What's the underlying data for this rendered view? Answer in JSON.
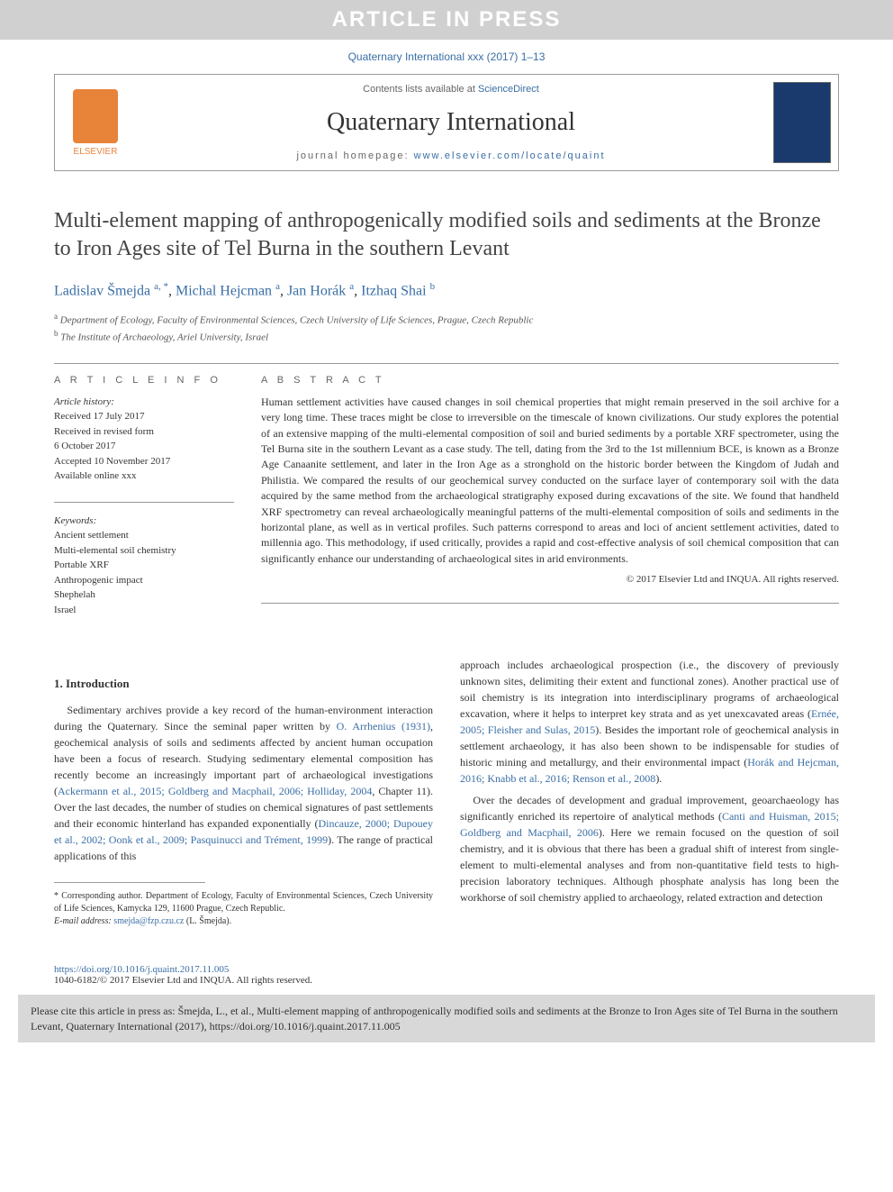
{
  "banner": "ARTICLE IN PRESS",
  "journal_ref": "Quaternary International xxx (2017) 1–13",
  "header": {
    "contents_prefix": "Contents lists available at ",
    "contents_link": "ScienceDirect",
    "journal_name": "Quaternary International",
    "homepage_prefix": "journal homepage: ",
    "homepage_url": "www.elsevier.com/locate/quaint",
    "publisher_label": "ELSEVIER"
  },
  "title": "Multi-element mapping of anthropogenically modified soils and sediments at the Bronze to Iron Ages site of Tel Burna in the southern Levant",
  "authors": [
    {
      "name": "Ladislav Šmejda",
      "sup": "a, *"
    },
    {
      "name": "Michal Hejcman",
      "sup": "a"
    },
    {
      "name": "Jan Horák",
      "sup": "a"
    },
    {
      "name": "Itzhaq Shai",
      "sup": "b"
    }
  ],
  "affiliations": [
    {
      "sup": "a",
      "text": "Department of Ecology, Faculty of Environmental Sciences, Czech University of Life Sciences, Prague, Czech Republic"
    },
    {
      "sup": "b",
      "text": "The Institute of Archaeology, Ariel University, Israel"
    }
  ],
  "article_info": {
    "heading": "A R T I C L E  I N F O",
    "history_label": "Article history:",
    "history": [
      "Received 17 July 2017",
      "Received in revised form",
      "6 October 2017",
      "Accepted 10 November 2017",
      "Available online xxx"
    ],
    "keywords_label": "Keywords:",
    "keywords": [
      "Ancient settlement",
      "Multi-elemental soil chemistry",
      "Portable XRF",
      "Anthropogenic impact",
      "Shephelah",
      "Israel"
    ]
  },
  "abstract": {
    "heading": "A B S T R A C T",
    "text": "Human settlement activities have caused changes in soil chemical properties that might remain preserved in the soil archive for a very long time. These traces might be close to irreversible on the timescale of known civilizations. Our study explores the potential of an extensive mapping of the multi-elemental composition of soil and buried sediments by a portable XRF spectrometer, using the Tel Burna site in the southern Levant as a case study. The tell, dating from the 3rd to the 1st millennium BCE, is known as a Bronze Age Canaanite settlement, and later in the Iron Age as a stronghold on the historic border between the Kingdom of Judah and Philistia. We compared the results of our geochemical survey conducted on the surface layer of contemporary soil with the data acquired by the same method from the archaeological stratigraphy exposed during excavations of the site. We found that handheld XRF spectrometry can reveal archaeologically meaningful patterns of the multi-elemental composition of soils and sediments in the horizontal plane, as well as in vertical profiles. Such patterns correspond to areas and loci of ancient settlement activities, dated to millennia ago. This methodology, if used critically, provides a rapid and cost-effective analysis of soil chemical composition that can significantly enhance our understanding of archaeological sites in arid environments.",
    "copyright": "© 2017 Elsevier Ltd and INQUA. All rights reserved."
  },
  "body": {
    "section_heading": "1. Introduction",
    "col1_p1_a": "Sedimentary archives provide a key record of the human-environment interaction during the Quaternary. Since the seminal paper written by ",
    "col1_p1_ref1": "O. Arrhenius (1931)",
    "col1_p1_b": ", geochemical analysis of soils and sediments affected by ancient human occupation have been a focus of research. Studying sedimentary elemental composition has recently become an increasingly important part of archaeological investigations (",
    "col1_p1_ref2": "Ackermann et al., 2015; Goldberg and Macphail, 2006; Holliday, 2004",
    "col1_p1_c": ", Chapter 11). Over the last decades, the number of studies on chemical signatures of past settlements and their economic hinterland has expanded exponentially (",
    "col1_p1_ref3": "Dincauze, 2000; Dupouey et al., 2002; Oonk et al., 2009; Pasquinucci and Trément, 1999",
    "col1_p1_d": "). The range of practical applications of this",
    "col2_p1_a": "approach includes archaeological prospection (i.e., the discovery of previously unknown sites, delimiting their extent and functional zones). Another practical use of soil chemistry is its integration into interdisciplinary programs of archaeological excavation, where it helps to interpret key strata and as yet unexcavated areas (",
    "col2_p1_ref1": "Ernée, 2005; Fleisher and Sulas, 2015",
    "col2_p1_b": "). Besides the important role of geochemical analysis in settlement archaeology, it has also been shown to be indispensable for studies of historic mining and metallurgy, and their environmental impact (",
    "col2_p1_ref2": "Horák and Hejcman, 2016; Knabb et al., 2016; Renson et al., 2008",
    "col2_p1_c": ").",
    "col2_p2_a": "Over the decades of development and gradual improvement, geoarchaeology has significantly enriched its repertoire of analytical methods (",
    "col2_p2_ref1": "Canti and Huisman, 2015; Goldberg and Macphail, 2006",
    "col2_p2_b": "). Here we remain focused on the question of soil chemistry, and it is obvious that there has been a gradual shift of interest from single-element to multi-elemental analyses and from non-quantitative field tests to high-precision laboratory techniques. Although phosphate analysis has long been the workhorse of soil chemistry applied to archaeology, related extraction and detection"
  },
  "footnote": {
    "corresponding": "* Corresponding author. Department of Ecology, Faculty of Environmental Sciences, Czech University of Life Sciences, Kamycka 129, 11600 Prague, Czech Republic.",
    "email_label": "E-mail address: ",
    "email": "smejda@fzp.czu.cz",
    "email_who": " (L. Šmejda)."
  },
  "doi": {
    "url": "https://doi.org/10.1016/j.quaint.2017.11.005",
    "issn_line": "1040-6182/© 2017 Elsevier Ltd and INQUA. All rights reserved."
  },
  "cite_box": "Please cite this article in press as: Šmejda, L., et al., Multi-element mapping of anthropogenically modified soils and sediments at the Bronze to Iron Ages site of Tel Burna in the southern Levant, Quaternary International (2017), https://doi.org/10.1016/j.quaint.2017.11.005",
  "colors": {
    "link": "#3a6ea5",
    "banner_bg": "#d0d0d0",
    "elsevier_orange": "#e8833a",
    "citebox_bg": "#d8d8d8"
  }
}
